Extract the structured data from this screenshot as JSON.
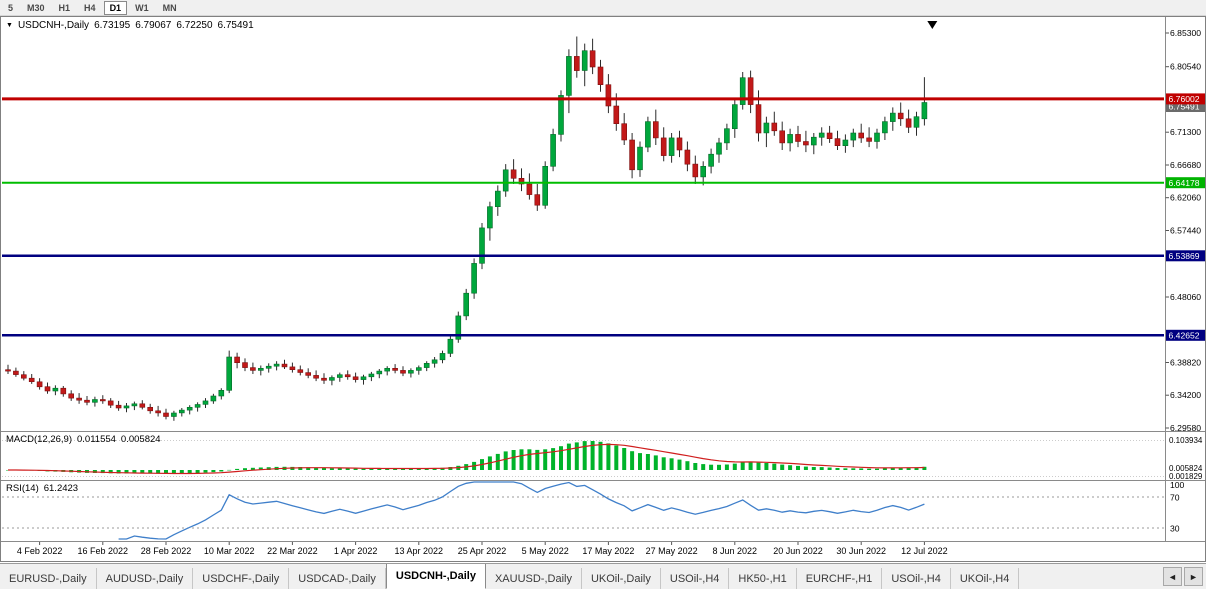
{
  "toolbar": {
    "timeframes": [
      "5",
      "M30",
      "H1",
      "H4",
      "D1",
      "W1",
      "MN"
    ],
    "active": "D1"
  },
  "legend": {
    "dropdown_icon": "▼",
    "symbol": "USDCNH-,Daily",
    "open": "6.73195",
    "high": "6.79067",
    "low": "6.72250",
    "close": "6.75491"
  },
  "price_axis": {
    "ticks": [
      {
        "label": "6.85300",
        "value": 6.853
      },
      {
        "label": "6.80540",
        "value": 6.8054
      },
      {
        "label": "6.71300",
        "value": 6.713
      },
      {
        "label": "6.66680",
        "value": 6.6668
      },
      {
        "label": "6.62060",
        "value": 6.6206
      },
      {
        "label": "6.57440",
        "value": 6.5744
      },
      {
        "label": "6.48060",
        "value": 6.4806
      },
      {
        "label": "6.38820",
        "value": 6.3882
      },
      {
        "label": "6.34200",
        "value": 6.342
      },
      {
        "label": "6.29580",
        "value": 6.2958
      }
    ],
    "tags": [
      {
        "label": "6.75491",
        "value": 6.75491,
        "bg": "#6b6b6b",
        "offset": 4
      },
      {
        "label": "6.76002",
        "value": 6.76002,
        "bg": "#c00000",
        "offset": 0
      },
      {
        "label": "6.64178",
        "value": 6.64178,
        "bg": "#00b300",
        "offset": 0
      },
      {
        "label": "6.53869",
        "value": 6.53869,
        "bg": "#000080",
        "offset": 0
      },
      {
        "label": "6.42652",
        "value": 6.42652,
        "bg": "#000080",
        "offset": 0
      }
    ]
  },
  "hlines": [
    {
      "value": 6.76002,
      "color": "#c00000",
      "width": 3
    },
    {
      "value": 6.64178,
      "color": "#00bd00",
      "width": 2
    },
    {
      "value": 6.53869,
      "color": "#000080",
      "width": 2.5
    },
    {
      "value": 6.42652,
      "color": "#000080",
      "width": 2.5
    }
  ],
  "indicators": {
    "macd": {
      "name": "MACD(12,26,9)",
      "value_main": "0.011554",
      "value_signal": "0.005824",
      "axis_labels": [
        "0.103934",
        "0.005824",
        "0.001829"
      ],
      "params": {
        "fast": 12,
        "slow": 26,
        "signal": 9
      }
    },
    "rsi": {
      "name": "RSI(14)",
      "value": "61.2423",
      "period": 14,
      "axis_labels": [
        "100",
        "70",
        "30"
      ],
      "levels": [
        70,
        30
      ]
    }
  },
  "tabs": {
    "items": [
      "EURUSD-,Daily",
      "AUDUSD-,Daily",
      "USDCHF-,Daily",
      "USDCAD-,Daily",
      "USDCNH-,Daily",
      "XAUUSD-,Daily",
      "UKOil-,Daily",
      "USOil-,H4",
      "HK50-,H1",
      "EURCHF-,H1",
      "USOil-,H4",
      "UKOil-,H4"
    ],
    "active_index": 4,
    "prev_icon": "◄",
    "next_icon": "►"
  },
  "colors": {
    "up": "#00a73c",
    "up_border": "#056a28",
    "down": "#c21919",
    "down_border": "#7c0f0f",
    "wick": "#2b2b2b",
    "macd_hist": "#00b32a",
    "macd_signal": "#d01e1e",
    "rsi_line": "#3f7fca",
    "axis_text": "#000000"
  },
  "chart_data": {
    "type": "candlestick",
    "symbol": "USDCNH",
    "timeframe": "Daily",
    "ylim": [
      6.2958,
      6.853
    ],
    "marker_index": 117,
    "x_labels": [
      {
        "label": "4 Feb 2022",
        "index": 4
      },
      {
        "label": "16 Feb 2022",
        "index": 12
      },
      {
        "label": "28 Feb 2022",
        "index": 20
      },
      {
        "label": "10 Mar 2022",
        "index": 28
      },
      {
        "label": "22 Mar 2022",
        "index": 36
      },
      {
        "label": "1 Apr 2022",
        "index": 44
      },
      {
        "label": "13 Apr 2022",
        "index": 52
      },
      {
        "label": "25 Apr 2022",
        "index": 60
      },
      {
        "label": "5 May 2022",
        "index": 68
      },
      {
        "label": "17 May 2022",
        "index": 76
      },
      {
        "label": "27 May 2022",
        "index": 84
      },
      {
        "label": "8 Jun 2022",
        "index": 92
      },
      {
        "label": "20 Jun 2022",
        "index": 100
      },
      {
        "label": "30 Jun 2022",
        "index": 108
      },
      {
        "label": "12 Jul 2022",
        "index": 116
      }
    ],
    "candles": [
      [
        6.378,
        6.385,
        6.372,
        6.376
      ],
      [
        6.376,
        6.381,
        6.368,
        6.371
      ],
      [
        6.371,
        6.376,
        6.363,
        6.366
      ],
      [
        6.366,
        6.372,
        6.358,
        6.361
      ],
      [
        6.361,
        6.366,
        6.35,
        6.354
      ],
      [
        6.354,
        6.36,
        6.344,
        6.348
      ],
      [
        6.348,
        6.356,
        6.342,
        6.352
      ],
      [
        6.352,
        6.355,
        6.34,
        6.344
      ],
      [
        6.344,
        6.349,
        6.334,
        6.338
      ],
      [
        6.338,
        6.345,
        6.33,
        6.335
      ],
      [
        6.335,
        6.341,
        6.328,
        6.332
      ],
      [
        6.332,
        6.34,
        6.326,
        6.336
      ],
      [
        6.336,
        6.342,
        6.33,
        6.334
      ],
      [
        6.334,
        6.338,
        6.324,
        6.328
      ],
      [
        6.328,
        6.334,
        6.32,
        6.324
      ],
      [
        6.324,
        6.331,
        6.318,
        6.327
      ],
      [
        6.327,
        6.333,
        6.321,
        6.33
      ],
      [
        6.33,
        6.335,
        6.322,
        6.325
      ],
      [
        6.325,
        6.33,
        6.316,
        6.32
      ],
      [
        6.32,
        6.327,
        6.312,
        6.317
      ],
      [
        6.317,
        6.323,
        6.308,
        6.312
      ],
      [
        6.312,
        6.32,
        6.306,
        6.317
      ],
      [
        6.317,
        6.324,
        6.312,
        6.321
      ],
      [
        6.321,
        6.328,
        6.315,
        6.325
      ],
      [
        6.325,
        6.332,
        6.319,
        6.329
      ],
      [
        6.329,
        6.338,
        6.324,
        6.334
      ],
      [
        6.334,
        6.344,
        6.33,
        6.341
      ],
      [
        6.341,
        6.352,
        6.336,
        6.349
      ],
      [
        6.349,
        6.405,
        6.345,
        6.396
      ],
      [
        6.396,
        6.402,
        6.38,
        6.388
      ],
      [
        6.388,
        6.394,
        6.376,
        6.381
      ],
      [
        6.381,
        6.388,
        6.372,
        6.377
      ],
      [
        6.377,
        6.384,
        6.37,
        6.38
      ],
      [
        6.38,
        6.387,
        6.374,
        6.383
      ],
      [
        6.383,
        6.39,
        6.377,
        6.386
      ],
      [
        6.386,
        6.392,
        6.379,
        6.382
      ],
      [
        6.382,
        6.388,
        6.374,
        6.378
      ],
      [
        6.378,
        6.384,
        6.37,
        6.374
      ],
      [
        6.374,
        6.38,
        6.366,
        6.37
      ],
      [
        6.37,
        6.377,
        6.362,
        6.366
      ],
      [
        6.366,
        6.373,
        6.358,
        6.363
      ],
      [
        6.363,
        6.37,
        6.356,
        6.367
      ],
      [
        6.367,
        6.374,
        6.361,
        6.371
      ],
      [
        6.371,
        6.377,
        6.364,
        6.368
      ],
      [
        6.368,
        6.374,
        6.36,
        6.364
      ],
      [
        6.364,
        6.371,
        6.357,
        6.368
      ],
      [
        6.368,
        6.375,
        6.362,
        6.372
      ],
      [
        6.372,
        6.379,
        6.366,
        6.376
      ],
      [
        6.376,
        6.383,
        6.37,
        6.38
      ],
      [
        6.38,
        6.386,
        6.373,
        6.377
      ],
      [
        6.377,
        6.383,
        6.369,
        6.373
      ],
      [
        6.373,
        6.38,
        6.367,
        6.377
      ],
      [
        6.377,
        6.384,
        6.371,
        6.381
      ],
      [
        6.381,
        6.39,
        6.376,
        6.387
      ],
      [
        6.387,
        6.396,
        6.381,
        6.392
      ],
      [
        6.392,
        6.405,
        6.387,
        6.401
      ],
      [
        6.401,
        6.425,
        6.396,
        6.421
      ],
      [
        6.421,
        6.46,
        6.416,
        6.454
      ],
      [
        6.454,
        6.492,
        6.448,
        6.486
      ],
      [
        6.486,
        6.535,
        6.478,
        6.528
      ],
      [
        6.528,
        6.585,
        6.52,
        6.578
      ],
      [
        6.578,
        6.615,
        6.56,
        6.608
      ],
      [
        6.608,
        6.638,
        6.595,
        6.63
      ],
      [
        6.63,
        6.668,
        6.622,
        6.66
      ],
      [
        6.66,
        6.675,
        6.64,
        6.648
      ],
      [
        6.648,
        6.662,
        6.63,
        6.64
      ],
      [
        6.64,
        6.655,
        6.618,
        6.625
      ],
      [
        6.625,
        6.64,
        6.602,
        6.61
      ],
      [
        6.61,
        6.672,
        6.605,
        6.665
      ],
      [
        6.665,
        6.718,
        6.658,
        6.71
      ],
      [
        6.71,
        6.772,
        6.7,
        6.765
      ],
      [
        6.765,
        6.83,
        6.74,
        6.82
      ],
      [
        6.82,
        6.848,
        6.79,
        6.8
      ],
      [
        6.8,
        6.838,
        6.778,
        6.828
      ],
      [
        6.828,
        6.845,
        6.795,
        6.805
      ],
      [
        6.805,
        6.815,
        6.77,
        6.78
      ],
      [
        6.78,
        6.795,
        6.74,
        6.75
      ],
      [
        6.75,
        6.768,
        6.715,
        6.725
      ],
      [
        6.725,
        6.74,
        6.695,
        6.702
      ],
      [
        6.702,
        6.712,
        6.648,
        6.66
      ],
      [
        6.66,
        6.7,
        6.65,
        6.692
      ],
      [
        6.692,
        6.735,
        6.685,
        6.728
      ],
      [
        6.728,
        6.745,
        6.695,
        6.705
      ],
      [
        6.705,
        6.72,
        6.672,
        6.68
      ],
      [
        6.68,
        6.712,
        6.67,
        6.705
      ],
      [
        6.705,
        6.715,
        6.678,
        6.688
      ],
      [
        6.688,
        6.7,
        6.658,
        6.668
      ],
      [
        6.668,
        6.68,
        6.64,
        6.65
      ],
      [
        6.65,
        6.672,
        6.638,
        6.665
      ],
      [
        6.665,
        6.69,
        6.655,
        6.682
      ],
      [
        6.682,
        6.705,
        6.67,
        6.698
      ],
      [
        6.698,
        6.725,
        6.688,
        6.718
      ],
      [
        6.718,
        6.76,
        6.705,
        6.752
      ],
      [
        6.752,
        6.798,
        6.745,
        6.79
      ],
      [
        6.79,
        6.8,
        6.74,
        6.752
      ],
      [
        6.752,
        6.772,
        6.7,
        6.712
      ],
      [
        6.712,
        6.735,
        6.692,
        6.726
      ],
      [
        6.726,
        6.742,
        6.708,
        6.715
      ],
      [
        6.715,
        6.728,
        6.688,
        6.698
      ],
      [
        6.698,
        6.718,
        6.686,
        6.71
      ],
      [
        6.71,
        6.722,
        6.692,
        6.7
      ],
      [
        6.7,
        6.715,
        6.685,
        6.695
      ],
      [
        6.695,
        6.712,
        6.682,
        6.706
      ],
      [
        6.706,
        6.72,
        6.694,
        6.712
      ],
      [
        6.712,
        6.722,
        6.698,
        6.704
      ],
      [
        6.704,
        6.715,
        6.688,
        6.694
      ],
      [
        6.694,
        6.71,
        6.684,
        6.702
      ],
      [
        6.702,
        6.718,
        6.692,
        6.712
      ],
      [
        6.712,
        6.725,
        6.698,
        6.705
      ],
      [
        6.705,
        6.72,
        6.692,
        6.7
      ],
      [
        6.7,
        6.718,
        6.69,
        6.712
      ],
      [
        6.712,
        6.735,
        6.702,
        6.728
      ],
      [
        6.728,
        6.748,
        6.715,
        6.74
      ],
      [
        6.74,
        6.755,
        6.722,
        6.732
      ],
      [
        6.732,
        6.745,
        6.712,
        6.72
      ],
      [
        6.72,
        6.742,
        6.708,
        6.735
      ],
      [
        6.73195,
        6.79067,
        6.7225,
        6.75491
      ]
    ]
  }
}
